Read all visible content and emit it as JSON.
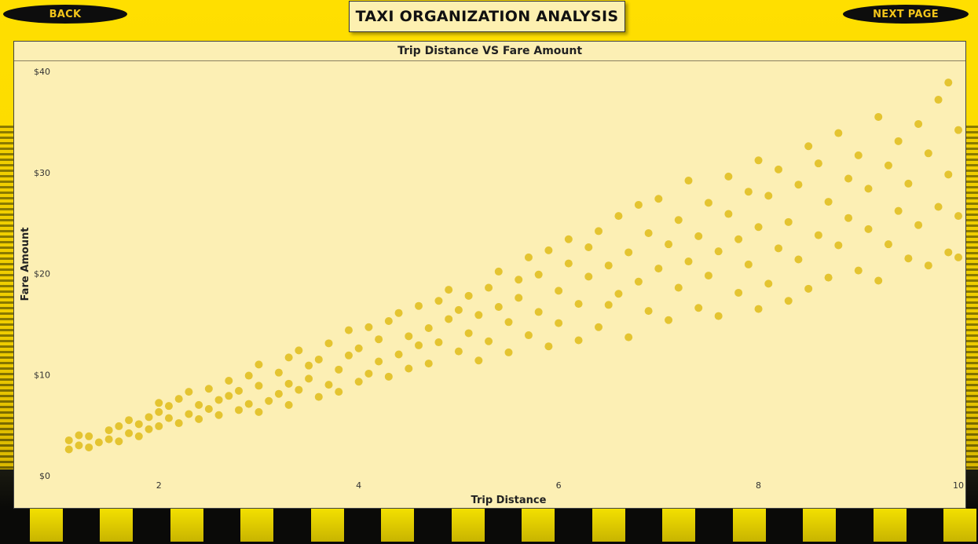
{
  "header": {
    "back_label": "BACK",
    "title": "TAXI ORGANIZATION ANALYSIS",
    "next_label": "NEXT PAGE"
  },
  "colors": {
    "background": "#f7d400",
    "panel": "#fcefb4",
    "point": "#e3c12a",
    "nav_text": "#f3c51a"
  },
  "chart_data": {
    "type": "scatter",
    "title": "Trip Distance VS Fare Amount",
    "xlabel": "Trip Distance",
    "ylabel": "Fare Amount",
    "xlim": [
      1,
      10
    ],
    "ylim": [
      0,
      40
    ],
    "x_ticks": [
      2,
      4,
      6,
      8,
      10
    ],
    "y_ticks": [
      {
        "v": 0,
        "label": "$0"
      },
      {
        "v": 10,
        "label": "$10"
      },
      {
        "v": 20,
        "label": "$20"
      },
      {
        "v": 30,
        "label": "$30"
      },
      {
        "v": 40,
        "label": "$40"
      }
    ],
    "grid": false,
    "legend": "none",
    "series": [
      {
        "points": [
          [
            1.1,
            2.6
          ],
          [
            1.1,
            3.5
          ],
          [
            1.2,
            3.0
          ],
          [
            1.2,
            4.0
          ],
          [
            1.3,
            2.8
          ],
          [
            1.3,
            3.9
          ],
          [
            1.4,
            3.3
          ],
          [
            1.5,
            3.6
          ],
          [
            1.5,
            4.5
          ],
          [
            1.6,
            3.4
          ],
          [
            1.6,
            4.9
          ],
          [
            1.7,
            4.2
          ],
          [
            1.7,
            5.5
          ],
          [
            1.8,
            3.9
          ],
          [
            1.8,
            5.1
          ],
          [
            1.9,
            4.6
          ],
          [
            1.9,
            5.8
          ],
          [
            2.0,
            4.9
          ],
          [
            2.0,
            6.3
          ],
          [
            2.0,
            7.2
          ],
          [
            2.1,
            5.7
          ],
          [
            2.1,
            6.9
          ],
          [
            2.2,
            5.2
          ],
          [
            2.2,
            7.6
          ],
          [
            2.3,
            6.1
          ],
          [
            2.3,
            8.3
          ],
          [
            2.4,
            5.6
          ],
          [
            2.4,
            7.0
          ],
          [
            2.5,
            6.6
          ],
          [
            2.5,
            8.6
          ],
          [
            2.6,
            6.0
          ],
          [
            2.6,
            7.5
          ],
          [
            2.7,
            7.9
          ],
          [
            2.7,
            9.4
          ],
          [
            2.8,
            6.5
          ],
          [
            2.8,
            8.4
          ],
          [
            2.9,
            7.1
          ],
          [
            2.9,
            9.9
          ],
          [
            3.0,
            6.3
          ],
          [
            3.0,
            8.9
          ],
          [
            3.0,
            11.0
          ],
          [
            3.1,
            7.4
          ],
          [
            3.2,
            8.1
          ],
          [
            3.2,
            10.2
          ],
          [
            3.3,
            7.0
          ],
          [
            3.3,
            9.1
          ],
          [
            3.3,
            11.7
          ],
          [
            3.4,
            8.5
          ],
          [
            3.4,
            12.4
          ],
          [
            3.5,
            9.6
          ],
          [
            3.5,
            10.9
          ],
          [
            3.6,
            7.8
          ],
          [
            3.6,
            11.5
          ],
          [
            3.7,
            9.0
          ],
          [
            3.7,
            13.1
          ],
          [
            3.8,
            8.3
          ],
          [
            3.8,
            10.5
          ],
          [
            3.9,
            11.9
          ],
          [
            3.9,
            14.4
          ],
          [
            4.0,
            9.3
          ],
          [
            4.0,
            12.6
          ],
          [
            4.1,
            10.1
          ],
          [
            4.1,
            14.7
          ],
          [
            4.2,
            11.3
          ],
          [
            4.2,
            13.5
          ],
          [
            4.3,
            9.8
          ],
          [
            4.3,
            15.3
          ],
          [
            4.4,
            12.0
          ],
          [
            4.4,
            16.1
          ],
          [
            4.5,
            10.6
          ],
          [
            4.5,
            13.8
          ],
          [
            4.6,
            12.9
          ],
          [
            4.6,
            16.8
          ],
          [
            4.7,
            11.1
          ],
          [
            4.7,
            14.6
          ],
          [
            4.8,
            13.2
          ],
          [
            4.8,
            17.3
          ],
          [
            4.9,
            15.5
          ],
          [
            4.9,
            18.4
          ],
          [
            5.0,
            12.3
          ],
          [
            5.0,
            16.4
          ],
          [
            5.1,
            14.1
          ],
          [
            5.1,
            17.8
          ],
          [
            5.2,
            11.4
          ],
          [
            5.2,
            15.9
          ],
          [
            5.3,
            13.3
          ],
          [
            5.3,
            18.6
          ],
          [
            5.4,
            16.7
          ],
          [
            5.4,
            20.2
          ],
          [
            5.5,
            12.2
          ],
          [
            5.5,
            15.2
          ],
          [
            5.6,
            17.6
          ],
          [
            5.6,
            19.4
          ],
          [
            5.7,
            13.9
          ],
          [
            5.7,
            21.6
          ],
          [
            5.8,
            16.2
          ],
          [
            5.8,
            19.9
          ],
          [
            5.9,
            12.8
          ],
          [
            5.9,
            22.3
          ],
          [
            6.0,
            15.1
          ],
          [
            6.0,
            18.3
          ],
          [
            6.1,
            21.0
          ],
          [
            6.1,
            23.4
          ],
          [
            6.2,
            13.4
          ],
          [
            6.2,
            17.0
          ],
          [
            6.3,
            19.7
          ],
          [
            6.3,
            22.6
          ],
          [
            6.4,
            14.7
          ],
          [
            6.4,
            24.2
          ],
          [
            6.5,
            16.9
          ],
          [
            6.5,
            20.8
          ],
          [
            6.6,
            18.0
          ],
          [
            6.6,
            25.7
          ],
          [
            6.7,
            13.7
          ],
          [
            6.7,
            22.1
          ],
          [
            6.8,
            19.2
          ],
          [
            6.8,
            26.8
          ],
          [
            6.9,
            16.3
          ],
          [
            6.9,
            24.0
          ],
          [
            7.0,
            20.5
          ],
          [
            7.0,
            27.4
          ],
          [
            7.1,
            15.4
          ],
          [
            7.1,
            22.9
          ],
          [
            7.2,
            18.6
          ],
          [
            7.2,
            25.3
          ],
          [
            7.3,
            21.2
          ],
          [
            7.3,
            29.2
          ],
          [
            7.4,
            16.6
          ],
          [
            7.4,
            23.7
          ],
          [
            7.5,
            19.8
          ],
          [
            7.5,
            27.0
          ],
          [
            7.6,
            15.8
          ],
          [
            7.6,
            22.2
          ],
          [
            7.7,
            25.9
          ],
          [
            7.7,
            29.6
          ],
          [
            7.8,
            18.1
          ],
          [
            7.8,
            23.4
          ],
          [
            7.9,
            20.9
          ],
          [
            7.9,
            28.1
          ],
          [
            8.0,
            16.5
          ],
          [
            8.0,
            24.6
          ],
          [
            8.0,
            31.2
          ],
          [
            8.1,
            19.0
          ],
          [
            8.1,
            27.7
          ],
          [
            8.2,
            22.5
          ],
          [
            8.2,
            30.3
          ],
          [
            8.3,
            17.3
          ],
          [
            8.3,
            25.1
          ],
          [
            8.4,
            21.4
          ],
          [
            8.4,
            28.8
          ],
          [
            8.5,
            18.5
          ],
          [
            8.5,
            32.6
          ],
          [
            8.6,
            23.8
          ],
          [
            8.6,
            30.9
          ],
          [
            8.7,
            19.6
          ],
          [
            8.7,
            27.1
          ],
          [
            8.8,
            22.8
          ],
          [
            8.8,
            33.9
          ],
          [
            8.9,
            25.5
          ],
          [
            8.9,
            29.4
          ],
          [
            9.0,
            20.3
          ],
          [
            9.0,
            31.7
          ],
          [
            9.1,
            24.4
          ],
          [
            9.1,
            28.4
          ],
          [
            9.2,
            19.3
          ],
          [
            9.2,
            35.5
          ],
          [
            9.3,
            22.9
          ],
          [
            9.3,
            30.7
          ],
          [
            9.4,
            26.2
          ],
          [
            9.4,
            33.1
          ],
          [
            9.5,
            21.5
          ],
          [
            9.5,
            28.9
          ],
          [
            9.6,
            24.8
          ],
          [
            9.6,
            34.8
          ],
          [
            9.7,
            20.8
          ],
          [
            9.7,
            31.9
          ],
          [
            9.8,
            26.6
          ],
          [
            9.8,
            37.2
          ],
          [
            9.9,
            22.1
          ],
          [
            9.9,
            29.8
          ],
          [
            9.9,
            38.9
          ],
          [
            10.0,
            25.7
          ],
          [
            10.0,
            34.2
          ],
          [
            10.0,
            21.6
          ]
        ]
      }
    ]
  }
}
